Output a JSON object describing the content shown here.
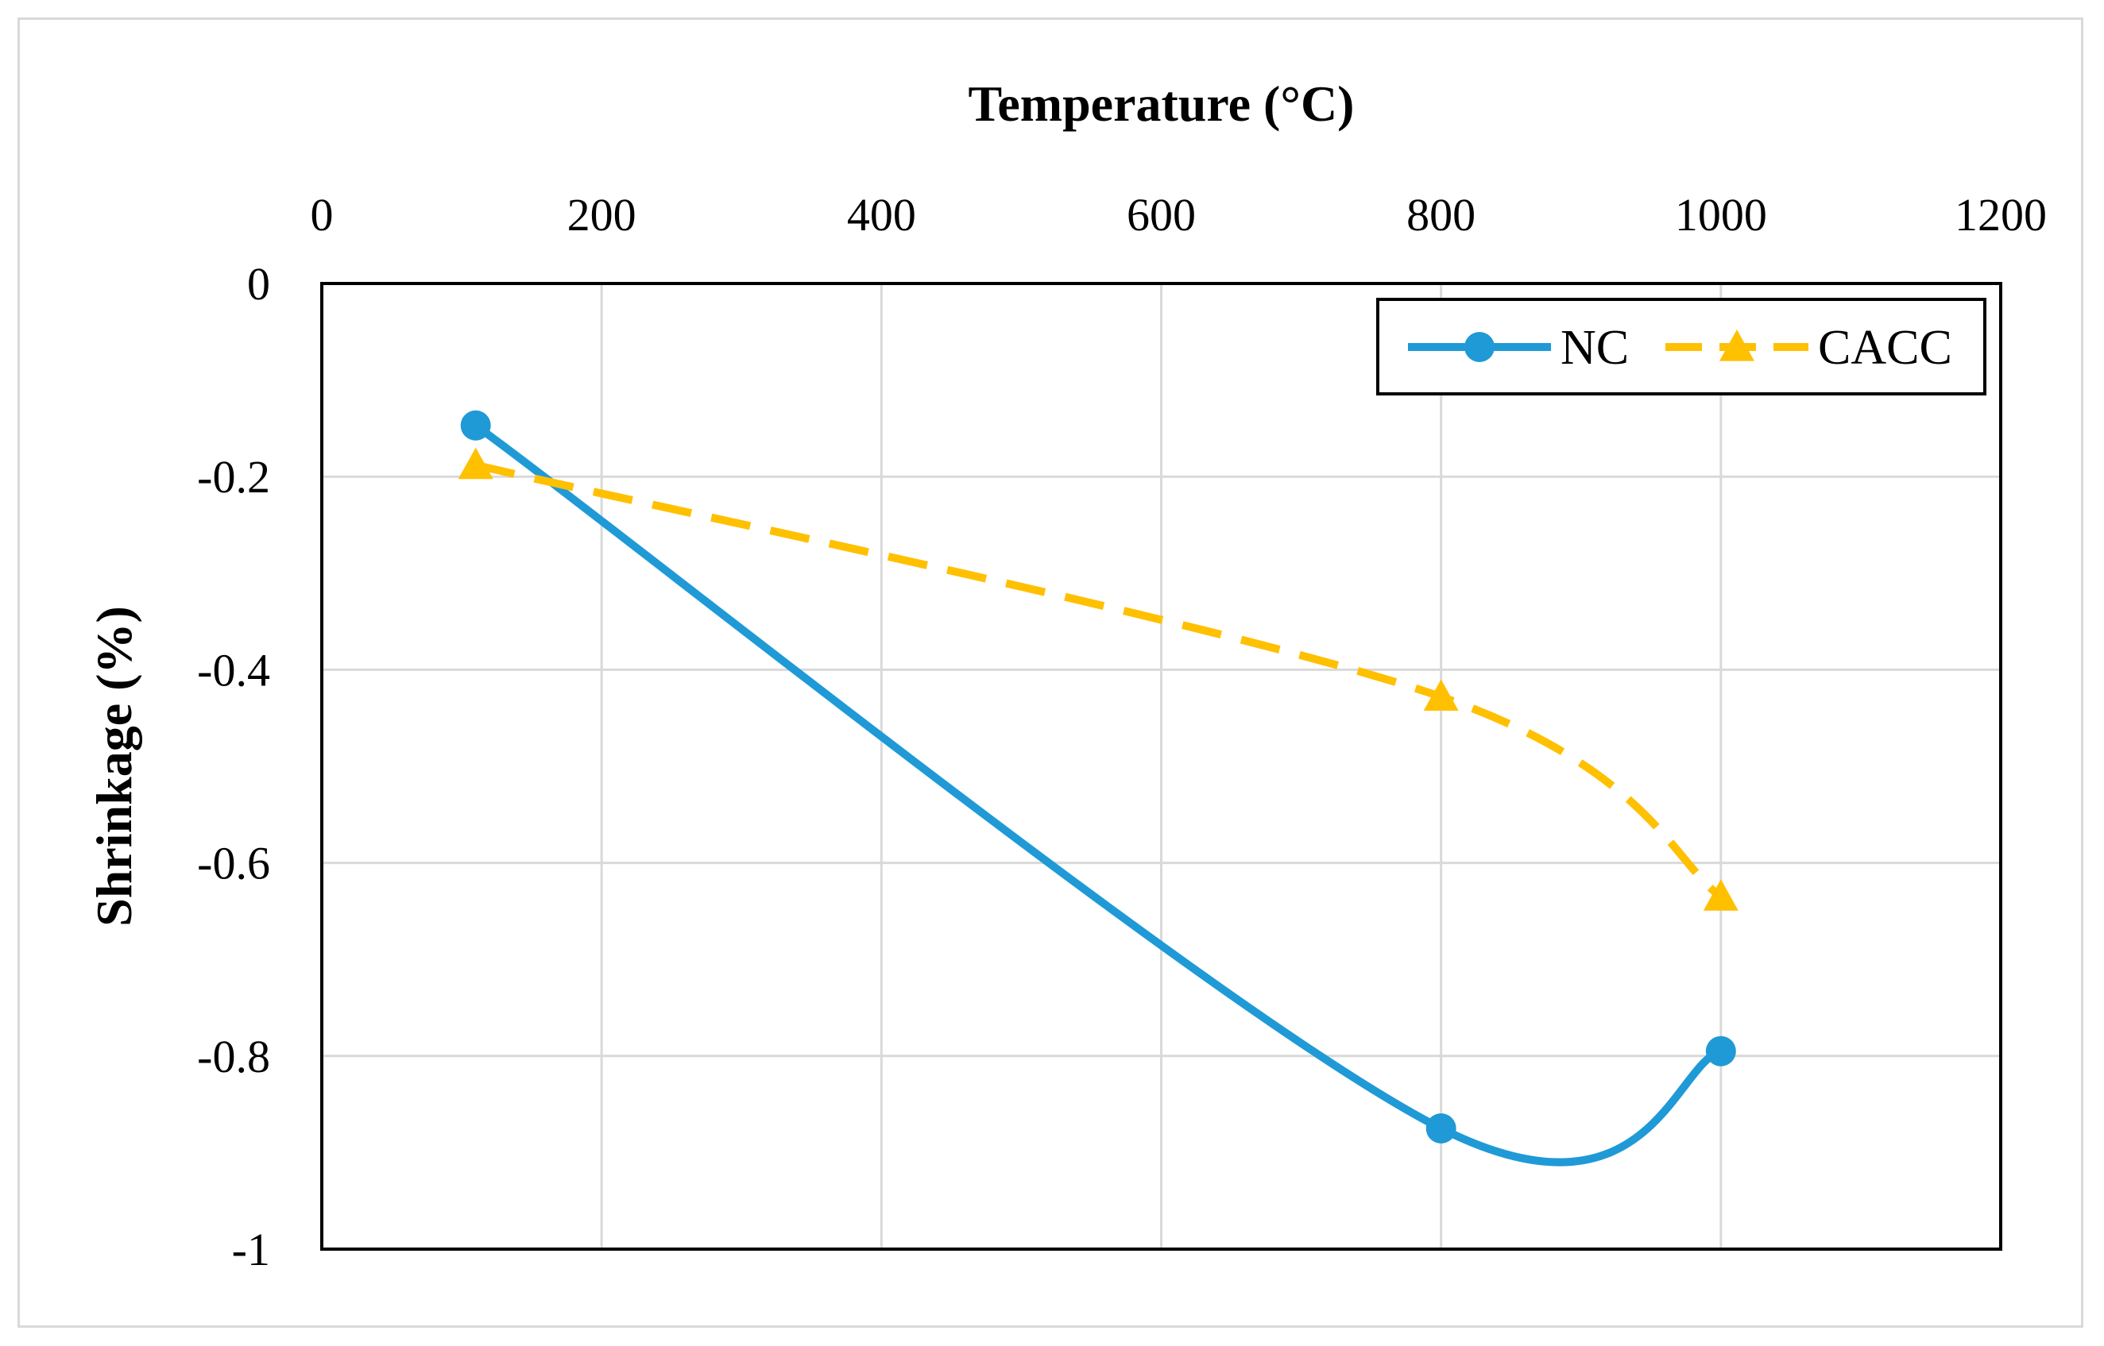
{
  "chart_data": {
    "type": "line",
    "title": "",
    "xlabel": "Temperature  (°C)",
    "ylabel": "Shrinkage  (%)",
    "xlim": [
      0,
      1200
    ],
    "ylim": [
      -1,
      0
    ],
    "x_ticks": [
      0,
      200,
      400,
      600,
      800,
      1000,
      1200
    ],
    "x_tick_labels": [
      "0",
      "200",
      "400",
      "600",
      "800",
      "1000",
      "1200"
    ],
    "y_ticks": [
      0,
      -0.2,
      -0.4,
      -0.6,
      -0.8,
      -1
    ],
    "y_tick_labels": [
      "0",
      "-0.2",
      "-0.4",
      "-0.6",
      "-0.8",
      "-1"
    ],
    "x_axis_position": "top",
    "grid": true,
    "legend_position": "top-right",
    "series": [
      {
        "name": "NC",
        "x": [
          110,
          800,
          1000
        ],
        "values": [
          -0.147,
          -0.875,
          -0.795
        ],
        "color": "#1f9ad6",
        "line_style": "solid",
        "marker": "circle",
        "smooth": true
      },
      {
        "name": "CACC",
        "x": [
          110,
          800,
          1000
        ],
        "values": [
          -0.188,
          -0.428,
          -0.635
        ],
        "color": "#ffc000",
        "line_style": "dashed",
        "marker": "triangle",
        "smooth": true
      }
    ]
  }
}
